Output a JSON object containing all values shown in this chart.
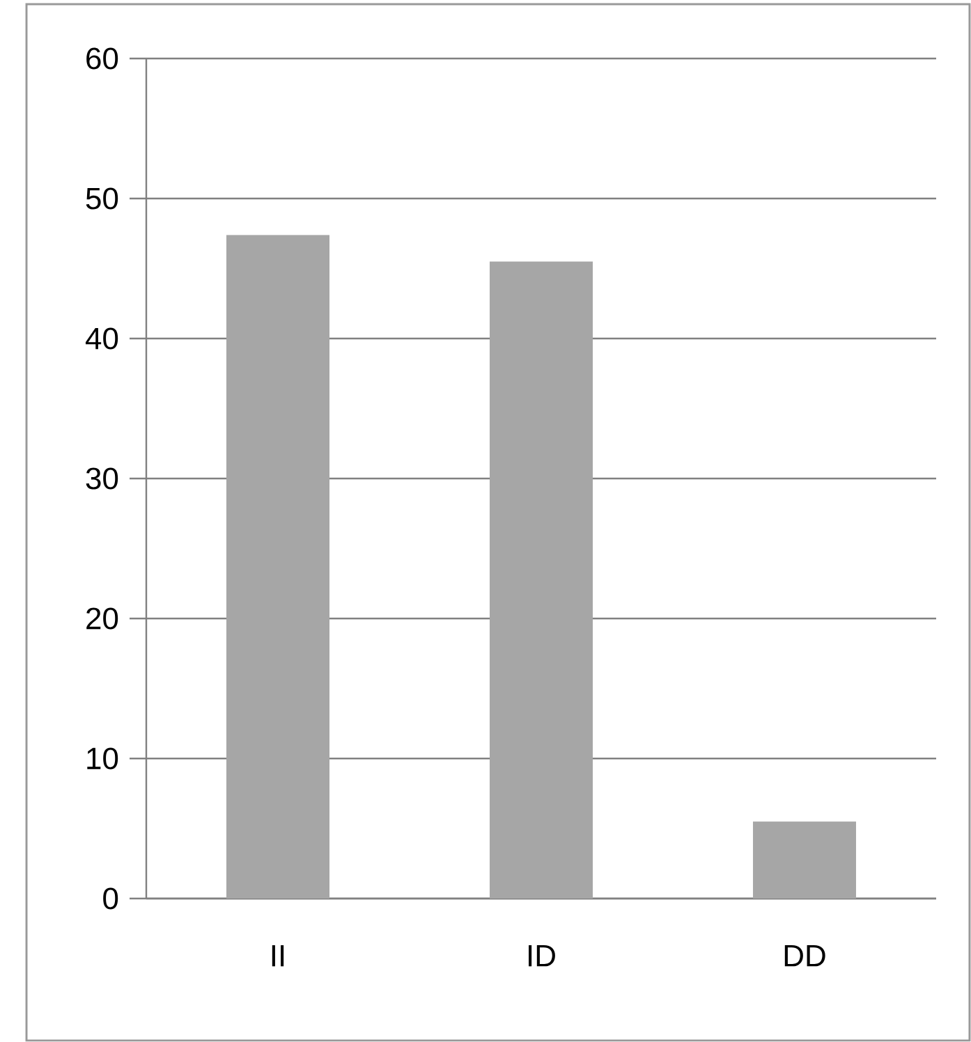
{
  "chart_data": {
    "type": "bar",
    "categories": [
      "II",
      "ID",
      "DD"
    ],
    "values": [
      47.4,
      45.5,
      5.5
    ],
    "color": "#a6a6a6",
    "ylim": [
      0,
      60
    ],
    "yticks": [
      0,
      10,
      20,
      30,
      40,
      50,
      60
    ],
    "grid": "y"
  }
}
